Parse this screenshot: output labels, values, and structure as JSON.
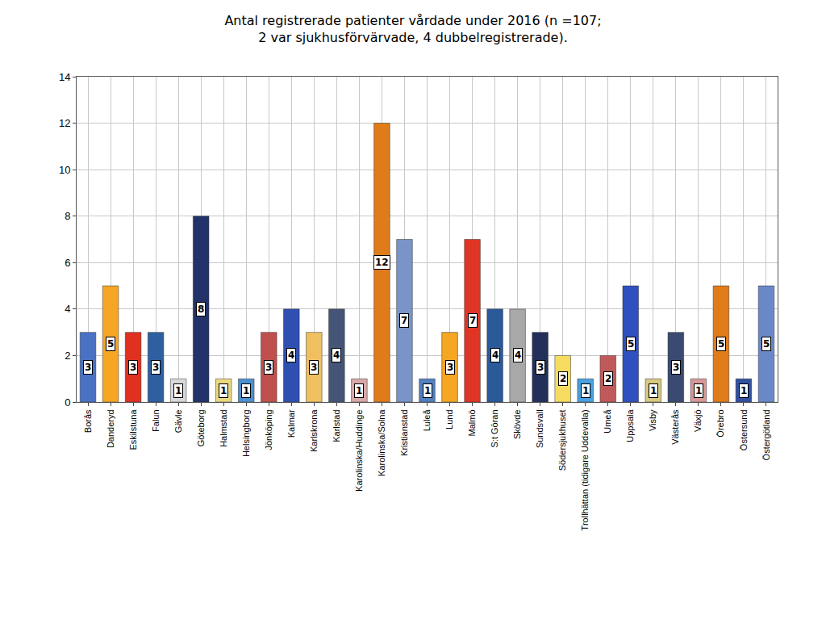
{
  "chart_data": {
    "type": "bar",
    "title": "Antal registrerade patienter vårdade under 2016 (n =107;\n2 var sjukhusförvärvade, 4 dubbelregistrerade).",
    "categories": [
      "Borås",
      "Danderyd",
      "Eskilstuna",
      "Falun",
      "Gävle",
      "Göteborg",
      "Halmstad",
      "Helsingborg",
      "Jönköping",
      "Kalmar",
      "Karlskrona",
      "Karlstad",
      "Karolinska/Huddinge",
      "Karolinska/Solna",
      "Kristianstad",
      "Luleå",
      "Lund",
      "Malmö",
      "S:t Göran",
      "Skövde",
      "Sundsvall",
      "Södersjukhuset",
      "Trollhättan (tidigare Uddevalla)",
      "Umeå",
      "Uppsala",
      "Visby",
      "Västerås",
      "Växjö",
      "Örebro",
      "Östersund",
      "Östergötland"
    ],
    "values": [
      3,
      5,
      3,
      3,
      1,
      8,
      1,
      1,
      3,
      4,
      3,
      4,
      1,
      12,
      7,
      1,
      3,
      7,
      4,
      4,
      3,
      2,
      1,
      2,
      5,
      1,
      3,
      1,
      5,
      1,
      5
    ],
    "colors": [
      "#4a72c4",
      "#f5a623",
      "#e03020",
      "#2e5fa0",
      "#d8d8d8",
      "#22336a",
      "#e8d880",
      "#4a90d0",
      "#c0504d",
      "#2f50b0",
      "#f0c060",
      "#445577",
      "#d8a8a8",
      "#e07b1a",
      "#7a94c8",
      "#5080c0",
      "#f5a623",
      "#e03525",
      "#2a5a9a",
      "#a8a8a8",
      "#22305a",
      "#f5dc60",
      "#4aa0e0",
      "#c05a5a",
      "#2f50c0",
      "#d8c880",
      "#3a4a70",
      "#d89898",
      "#e07b1a",
      "#3050a0",
      "#6a88c8"
    ],
    "ylim": [
      0,
      14
    ],
    "yticks": [
      0,
      2,
      4,
      6,
      8,
      10,
      12,
      14
    ],
    "grid": true,
    "data_labels": true
  }
}
